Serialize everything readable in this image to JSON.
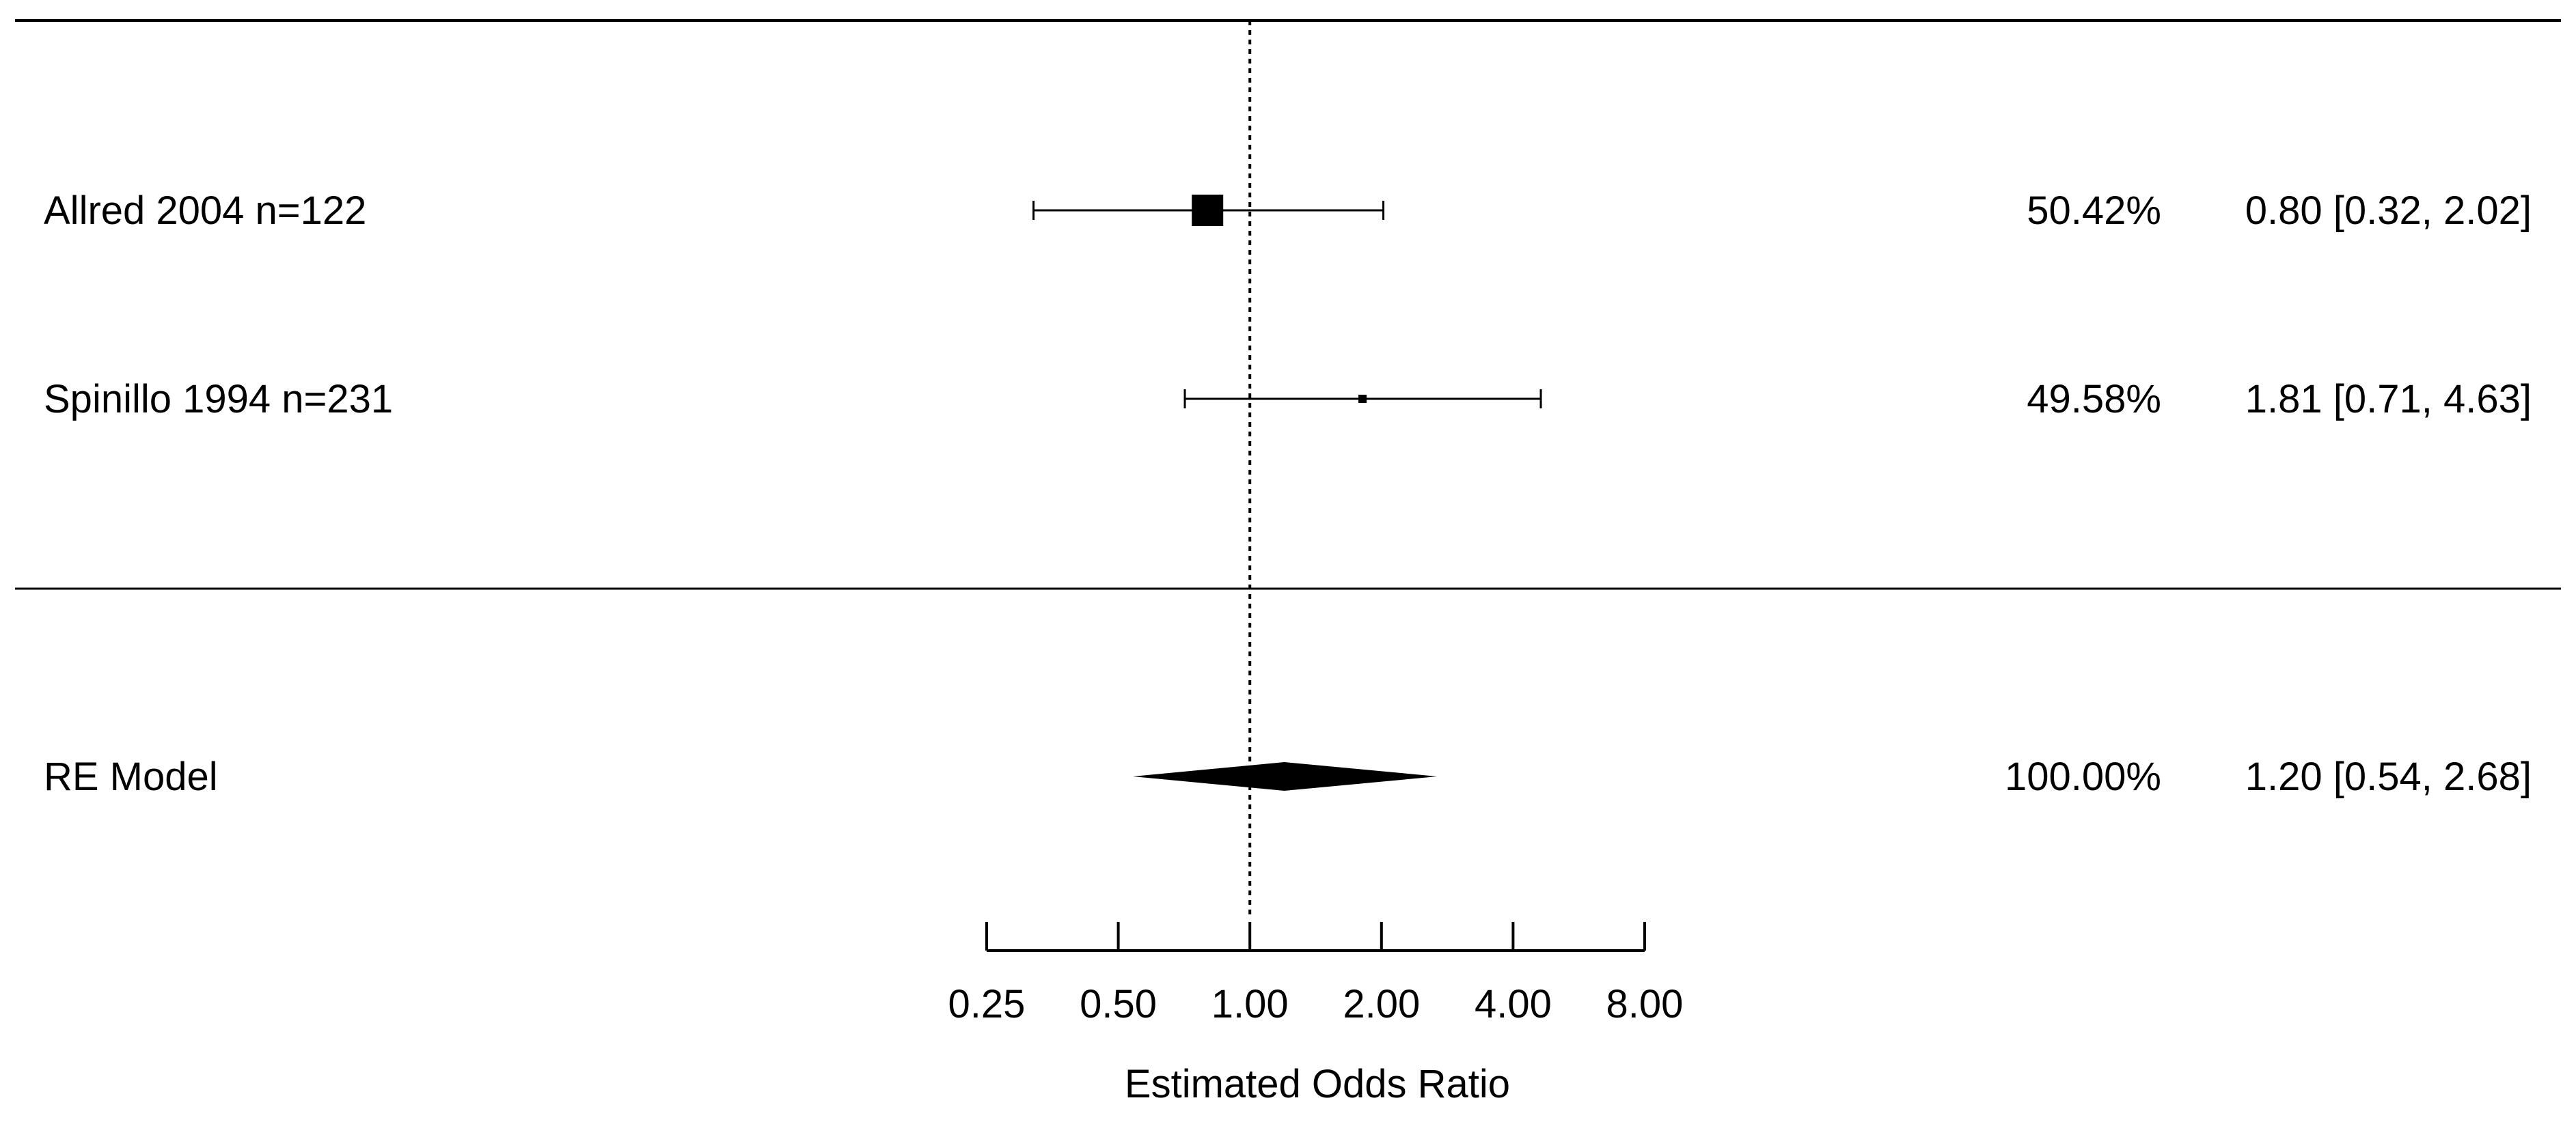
{
  "chart_data": {
    "type": "forest",
    "xlabel": "Estimated Odds Ratio",
    "x_scale": "log2",
    "xlim": [
      0.25,
      8.0
    ],
    "x_ticks": [
      0.25,
      0.5,
      1.0,
      2.0,
      4.0,
      8.0
    ],
    "x_tick_labels": [
      "0.25",
      "0.50",
      "1.00",
      "2.00",
      "4.00",
      "8.00"
    ],
    "reference_line": 1.0,
    "studies": [
      {
        "label": "Allred 2004   n=122",
        "weight_label": "50.42%",
        "ci_label": "0.80 [0.32, 2.02]",
        "estimate": 0.8,
        "lower": 0.32,
        "upper": 2.02,
        "weight": 50.42
      },
      {
        "label": "Spinillo 1994   n=231",
        "weight_label": "49.58%",
        "ci_label": "1.81 [0.71, 4.63]",
        "estimate": 1.81,
        "lower": 0.71,
        "upper": 4.63,
        "weight": 49.58
      }
    ],
    "summary": {
      "label": "RE Model",
      "weight_label": "100.00%",
      "ci_label": "1.20 [0.54, 2.68]",
      "estimate": 1.2,
      "lower": 0.54,
      "upper": 2.68
    },
    "colors": {
      "ink": "#000000",
      "background": "#ffffff"
    }
  }
}
